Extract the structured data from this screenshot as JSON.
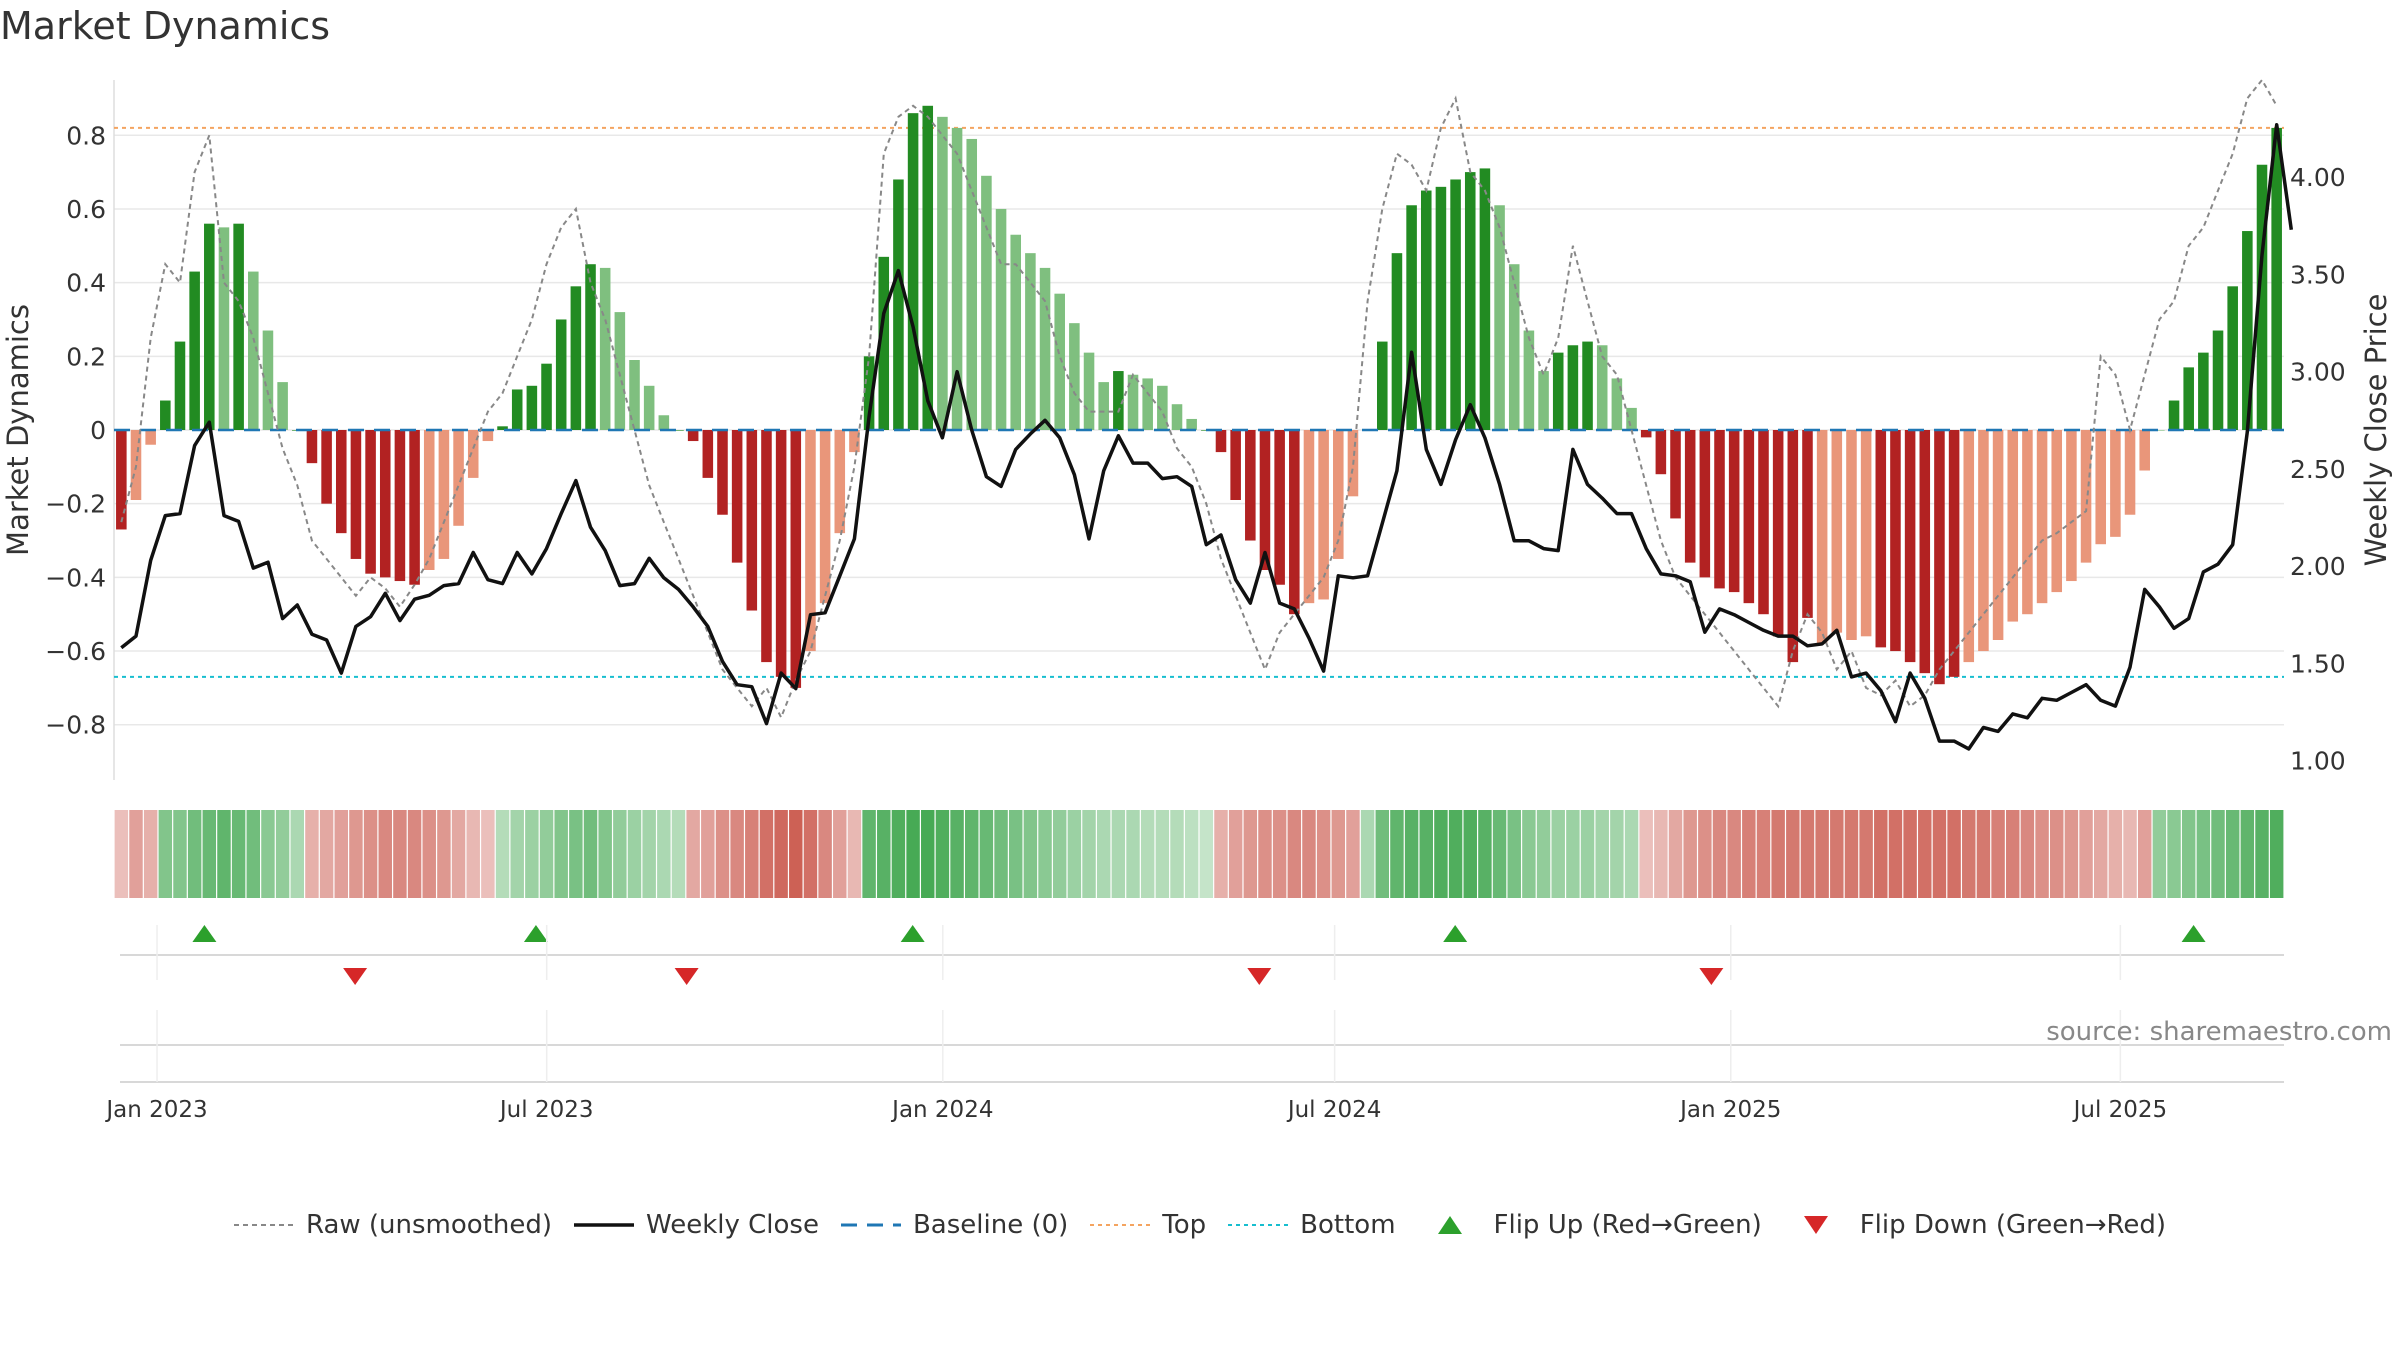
{
  "title": "Market Dynamics",
  "source": "source: sharemaestro.com",
  "colors": {
    "strong_green": "#228b22",
    "light_green": "#7fbf7f",
    "strong_red": "#b22222",
    "light_red": "#e9967a",
    "close_line": "#111111",
    "raw_line": "#888888",
    "baseline": "#1f77b4",
    "top": "#f4a460",
    "bottom": "#17becf",
    "flip_up": "#2ca02c",
    "flip_down": "#d62728"
  },
  "chart_data": {
    "type": "bar",
    "title": "Market Dynamics",
    "xlabel": "",
    "ylabel": "Market Dynamics",
    "y2label": "Weekly Close Price",
    "ylim": [
      -0.95,
      0.95
    ],
    "y2lim": [
      0.9,
      4.5
    ],
    "y_ticks": [
      0.8,
      0.6,
      0.4,
      0.2,
      0,
      -0.2,
      -0.4,
      -0.6,
      -0.8
    ],
    "y_tick_labels": [
      "0.8",
      "0.6",
      "0.4",
      "0.2",
      "0",
      "−0.2",
      "−0.4",
      "−0.6",
      "−0.8"
    ],
    "y2_ticks": [
      4.0,
      3.5,
      3.0,
      2.5,
      2.0,
      1.5,
      1.0
    ],
    "y2_tick_labels": [
      "4.00",
      "3.50",
      "3.00",
      "2.50",
      "2.00",
      "1.50",
      "1.00"
    ],
    "x_start": "2022-12-12",
    "x_end": "2025-09-15",
    "x_ticks": [
      {
        "date": "2023-01-01",
        "label": "Jan 2023"
      },
      {
        "date": "2023-07-01",
        "label": "Jul 2023"
      },
      {
        "date": "2024-01-01",
        "label": "Jan 2024"
      },
      {
        "date": "2024-07-01",
        "label": "Jul 2024"
      },
      {
        "date": "2025-01-01",
        "label": "Jan 2025"
      },
      {
        "date": "2025-07-01",
        "label": "Jul 2025"
      }
    ],
    "top_line": 0.82,
    "bottom_line": -0.67,
    "bar_values": [
      -0.27,
      -0.19,
      -0.04,
      0.08,
      0.24,
      0.43,
      0.56,
      0.55,
      0.56,
      0.43,
      0.27,
      0.13,
      0,
      -0.09,
      -0.2,
      -0.28,
      -0.35,
      -0.39,
      -0.4,
      -0.41,
      -0.42,
      -0.38,
      -0.35,
      -0.26,
      -0.13,
      -0.03,
      0.01,
      0.11,
      0.12,
      0.18,
      0.3,
      0.39,
      0.45,
      0.44,
      0.32,
      0.19,
      0.12,
      0.04,
      0,
      -0.03,
      -0.13,
      -0.23,
      -0.36,
      -0.49,
      -0.63,
      -0.67,
      -0.7,
      -0.6,
      -0.47,
      -0.28,
      -0.06,
      0.2,
      0.47,
      0.68,
      0.86,
      0.88,
      0.85,
      0.82,
      0.79,
      0.69,
      0.6,
      0.53,
      0.48,
      0.44,
      0.37,
      0.29,
      0.21,
      0.13,
      0.16,
      0.15,
      0.14,
      0.12,
      0.07,
      0.03,
      0,
      -0.06,
      -0.19,
      -0.3,
      -0.38,
      -0.42,
      -0.5,
      -0.47,
      -0.46,
      -0.35,
      -0.18,
      0,
      0.24,
      0.48,
      0.61,
      0.65,
      0.66,
      0.68,
      0.7,
      0.71,
      0.61,
      0.45,
      0.27,
      0.16,
      0.21,
      0.23,
      0.24,
      0.23,
      0.14,
      0.06,
      -0.02,
      -0.12,
      -0.24,
      -0.36,
      -0.4,
      -0.43,
      -0.44,
      -0.47,
      -0.5,
      -0.56,
      -0.63,
      -0.51,
      -0.58,
      -0.55,
      -0.57,
      -0.56,
      -0.59,
      -0.6,
      -0.63,
      -0.66,
      -0.69,
      -0.67,
      -0.63,
      -0.6,
      -0.57,
      -0.52,
      -0.5,
      -0.47,
      -0.44,
      -0.41,
      -0.36,
      -0.31,
      -0.29,
      -0.23,
      -0.11,
      0,
      0.08,
      0.17,
      0.21,
      0.27,
      0.39,
      0.54,
      0.72,
      0.82
    ],
    "bar_shades": [
      "S",
      "L",
      "L",
      "S",
      "S",
      "S",
      "S",
      "L",
      "S",
      "L",
      "L",
      "L",
      "S",
      "S",
      "S",
      "S",
      "S",
      "S",
      "S",
      "S",
      "S",
      "L",
      "L",
      "L",
      "L",
      "L",
      "S",
      "S",
      "S",
      "S",
      "S",
      "S",
      "S",
      "L",
      "L",
      "L",
      "L",
      "L",
      "S",
      "S",
      "S",
      "S",
      "S",
      "S",
      "S",
      "S",
      "S",
      "L",
      "L",
      "L",
      "L",
      "S",
      "S",
      "S",
      "S",
      "S",
      "L",
      "L",
      "L",
      "L",
      "L",
      "L",
      "L",
      "L",
      "L",
      "L",
      "L",
      "L",
      "S",
      "L",
      "L",
      "L",
      "L",
      "L",
      "S",
      "S",
      "S",
      "S",
      "S",
      "S",
      "S",
      "L",
      "L",
      "L",
      "L",
      "S",
      "S",
      "S",
      "S",
      "S",
      "S",
      "S",
      "S",
      "S",
      "L",
      "L",
      "L",
      "L",
      "S",
      "S",
      "S",
      "L",
      "L",
      "L",
      "S",
      "S",
      "S",
      "S",
      "S",
      "S",
      "S",
      "S",
      "S",
      "S",
      "S",
      "S",
      "L",
      "L",
      "L",
      "L",
      "S",
      "S",
      "S",
      "S",
      "S",
      "S",
      "L",
      "L",
      "L",
      "L",
      "L",
      "L",
      "L",
      "L",
      "L",
      "L",
      "L",
      "L",
      "L",
      "L",
      "S",
      "S",
      "S",
      "S",
      "S",
      "S",
      "S",
      "S",
      "S"
    ],
    "raw_values": [
      -0.25,
      -0.1,
      0.25,
      0.45,
      0.4,
      0.7,
      0.8,
      0.4,
      0.35,
      0.25,
      0.1,
      -0.05,
      -0.15,
      -0.3,
      -0.35,
      -0.4,
      -0.45,
      -0.4,
      -0.43,
      -0.48,
      -0.42,
      -0.35,
      -0.25,
      -0.15,
      -0.05,
      0.05,
      0.1,
      0.2,
      0.3,
      0.45,
      0.55,
      0.6,
      0.4,
      0.3,
      0.15,
      0.0,
      -0.15,
      -0.25,
      -0.35,
      -0.45,
      -0.55,
      -0.65,
      -0.7,
      -0.75,
      -0.7,
      -0.78,
      -0.68,
      -0.6,
      -0.45,
      -0.3,
      -0.1,
      0.2,
      0.75,
      0.85,
      0.88,
      0.85,
      0.8,
      0.75,
      0.65,
      0.55,
      0.45,
      0.45,
      0.4,
      0.35,
      0.2,
      0.1,
      0.05,
      0.05,
      0.05,
      0.15,
      0.1,
      0.05,
      -0.05,
      -0.1,
      -0.2,
      -0.35,
      -0.45,
      -0.55,
      -0.65,
      -0.55,
      -0.5,
      -0.45,
      -0.4,
      -0.3,
      -0.1,
      0.35,
      0.6,
      0.75,
      0.72,
      0.65,
      0.82,
      0.9,
      0.7,
      0.65,
      0.55,
      0.4,
      0.25,
      0.15,
      0.25,
      0.5,
      0.35,
      0.2,
      0.15,
      0.0,
      -0.15,
      -0.3,
      -0.4,
      -0.45,
      -0.5,
      -0.55,
      -0.6,
      -0.65,
      -0.7,
      -0.75,
      -0.6,
      -0.5,
      -0.55,
      -0.65,
      -0.6,
      -0.7,
      -0.72,
      -0.68,
      -0.75,
      -0.72,
      -0.65,
      -0.6,
      -0.55,
      -0.5,
      -0.45,
      -0.4,
      -0.35,
      -0.3,
      -0.28,
      -0.25,
      -0.22,
      0.2,
      0.15,
      0.0,
      0.15,
      0.3,
      0.35,
      0.5,
      0.55,
      0.65,
      0.75,
      0.9,
      0.95,
      0.88
    ],
    "close_values": [
      1.58,
      1.64,
      2.03,
      2.26,
      2.27,
      2.62,
      2.74,
      2.26,
      2.23,
      1.99,
      2.02,
      1.73,
      1.8,
      1.65,
      1.62,
      1.45,
      1.69,
      1.74,
      1.86,
      1.72,
      1.83,
      1.85,
      1.9,
      1.91,
      2.07,
      1.93,
      1.91,
      2.07,
      1.96,
      2.09,
      2.27,
      2.44,
      2.2,
      2.08,
      1.9,
      1.91,
      2.04,
      1.94,
      1.88,
      1.79,
      1.69,
      1.51,
      1.39,
      1.38,
      1.19,
      1.45,
      1.37,
      1.75,
      1.76,
      1.95,
      2.14,
      2.77,
      3.3,
      3.52,
      3.23,
      2.85,
      2.66,
      3.0,
      2.7,
      2.46,
      2.41,
      2.6,
      2.68,
      2.75,
      2.66,
      2.47,
      2.14,
      2.49,
      2.67,
      2.53,
      2.53,
      2.45,
      2.46,
      2.41,
      2.11,
      2.16,
      1.93,
      1.81,
      2.07,
      1.81,
      1.78,
      1.63,
      1.46,
      1.95,
      1.94,
      1.95,
      2.22,
      2.49,
      3.1,
      2.6,
      2.42,
      2.65,
      2.83,
      2.66,
      2.42,
      2.13,
      2.13,
      2.09,
      2.08,
      2.6,
      2.42,
      2.35,
      2.27,
      2.27,
      2.09,
      1.96,
      1.95,
      1.92,
      1.66,
      1.78,
      1.75,
      1.71,
      1.67,
      1.64,
      1.64,
      1.59,
      1.6,
      1.67,
      1.43,
      1.45,
      1.36,
      1.2,
      1.45,
      1.32,
      1.1,
      1.1,
      1.06,
      1.17,
      1.15,
      1.24,
      1.22,
      1.32,
      1.31,
      1.35,
      1.39,
      1.31,
      1.28,
      1.48,
      1.88,
      1.79,
      1.68,
      1.73,
      1.97,
      2.01,
      2.11,
      2.69,
      3.6,
      4.27,
      3.73
    ],
    "regime_shades": [
      0.25,
      0.45,
      0.35,
      0.6,
      0.6,
      0.7,
      0.75,
      0.8,
      0.75,
      0.7,
      0.55,
      0.5,
      0.35,
      0.35,
      0.4,
      0.45,
      0.5,
      0.55,
      0.6,
      0.6,
      0.6,
      0.55,
      0.5,
      0.4,
      0.3,
      0.25,
      0.3,
      0.4,
      0.45,
      0.5,
      0.6,
      0.65,
      0.7,
      0.6,
      0.5,
      0.45,
      0.4,
      0.35,
      0.3,
      0.4,
      0.45,
      0.55,
      0.6,
      0.65,
      0.75,
      0.8,
      0.85,
      0.75,
      0.6,
      0.45,
      0.3,
      0.8,
      0.85,
      0.9,
      0.95,
      0.95,
      0.9,
      0.85,
      0.8,
      0.75,
      0.7,
      0.65,
      0.6,
      0.55,
      0.5,
      0.45,
      0.4,
      0.35,
      0.35,
      0.35,
      0.3,
      0.3,
      0.3,
      0.25,
      0.2,
      0.35,
      0.45,
      0.5,
      0.55,
      0.55,
      0.6,
      0.6,
      0.55,
      0.5,
      0.45,
      0.35,
      0.7,
      0.8,
      0.85,
      0.85,
      0.9,
      0.9,
      0.9,
      0.85,
      0.75,
      0.65,
      0.55,
      0.5,
      0.45,
      0.45,
      0.45,
      0.4,
      0.4,
      0.35,
      0.25,
      0.3,
      0.4,
      0.5,
      0.55,
      0.6,
      0.6,
      0.65,
      0.65,
      0.7,
      0.7,
      0.7,
      0.7,
      0.7,
      0.7,
      0.7,
      0.75,
      0.75,
      0.75,
      0.75,
      0.75,
      0.75,
      0.7,
      0.7,
      0.65,
      0.65,
      0.6,
      0.55,
      0.55,
      0.5,
      0.45,
      0.4,
      0.35,
      0.3,
      0.45,
      0.5,
      0.55,
      0.6,
      0.65,
      0.7,
      0.75,
      0.8,
      0.85,
      0.9
    ],
    "flips_up": [
      "2023-01-23",
      "2023-06-26",
      "2023-12-18",
      "2024-08-26",
      "2025-08-04"
    ],
    "flips_down": [
      "2023-04-03",
      "2023-09-04",
      "2024-05-27",
      "2024-12-23"
    ],
    "legend": [
      "Raw (unsmoothed)",
      "Weekly Close",
      "Baseline (0)",
      "Top",
      "Bottom",
      "Flip Up (Red→Green)",
      "Flip Down (Green→Red)"
    ]
  }
}
